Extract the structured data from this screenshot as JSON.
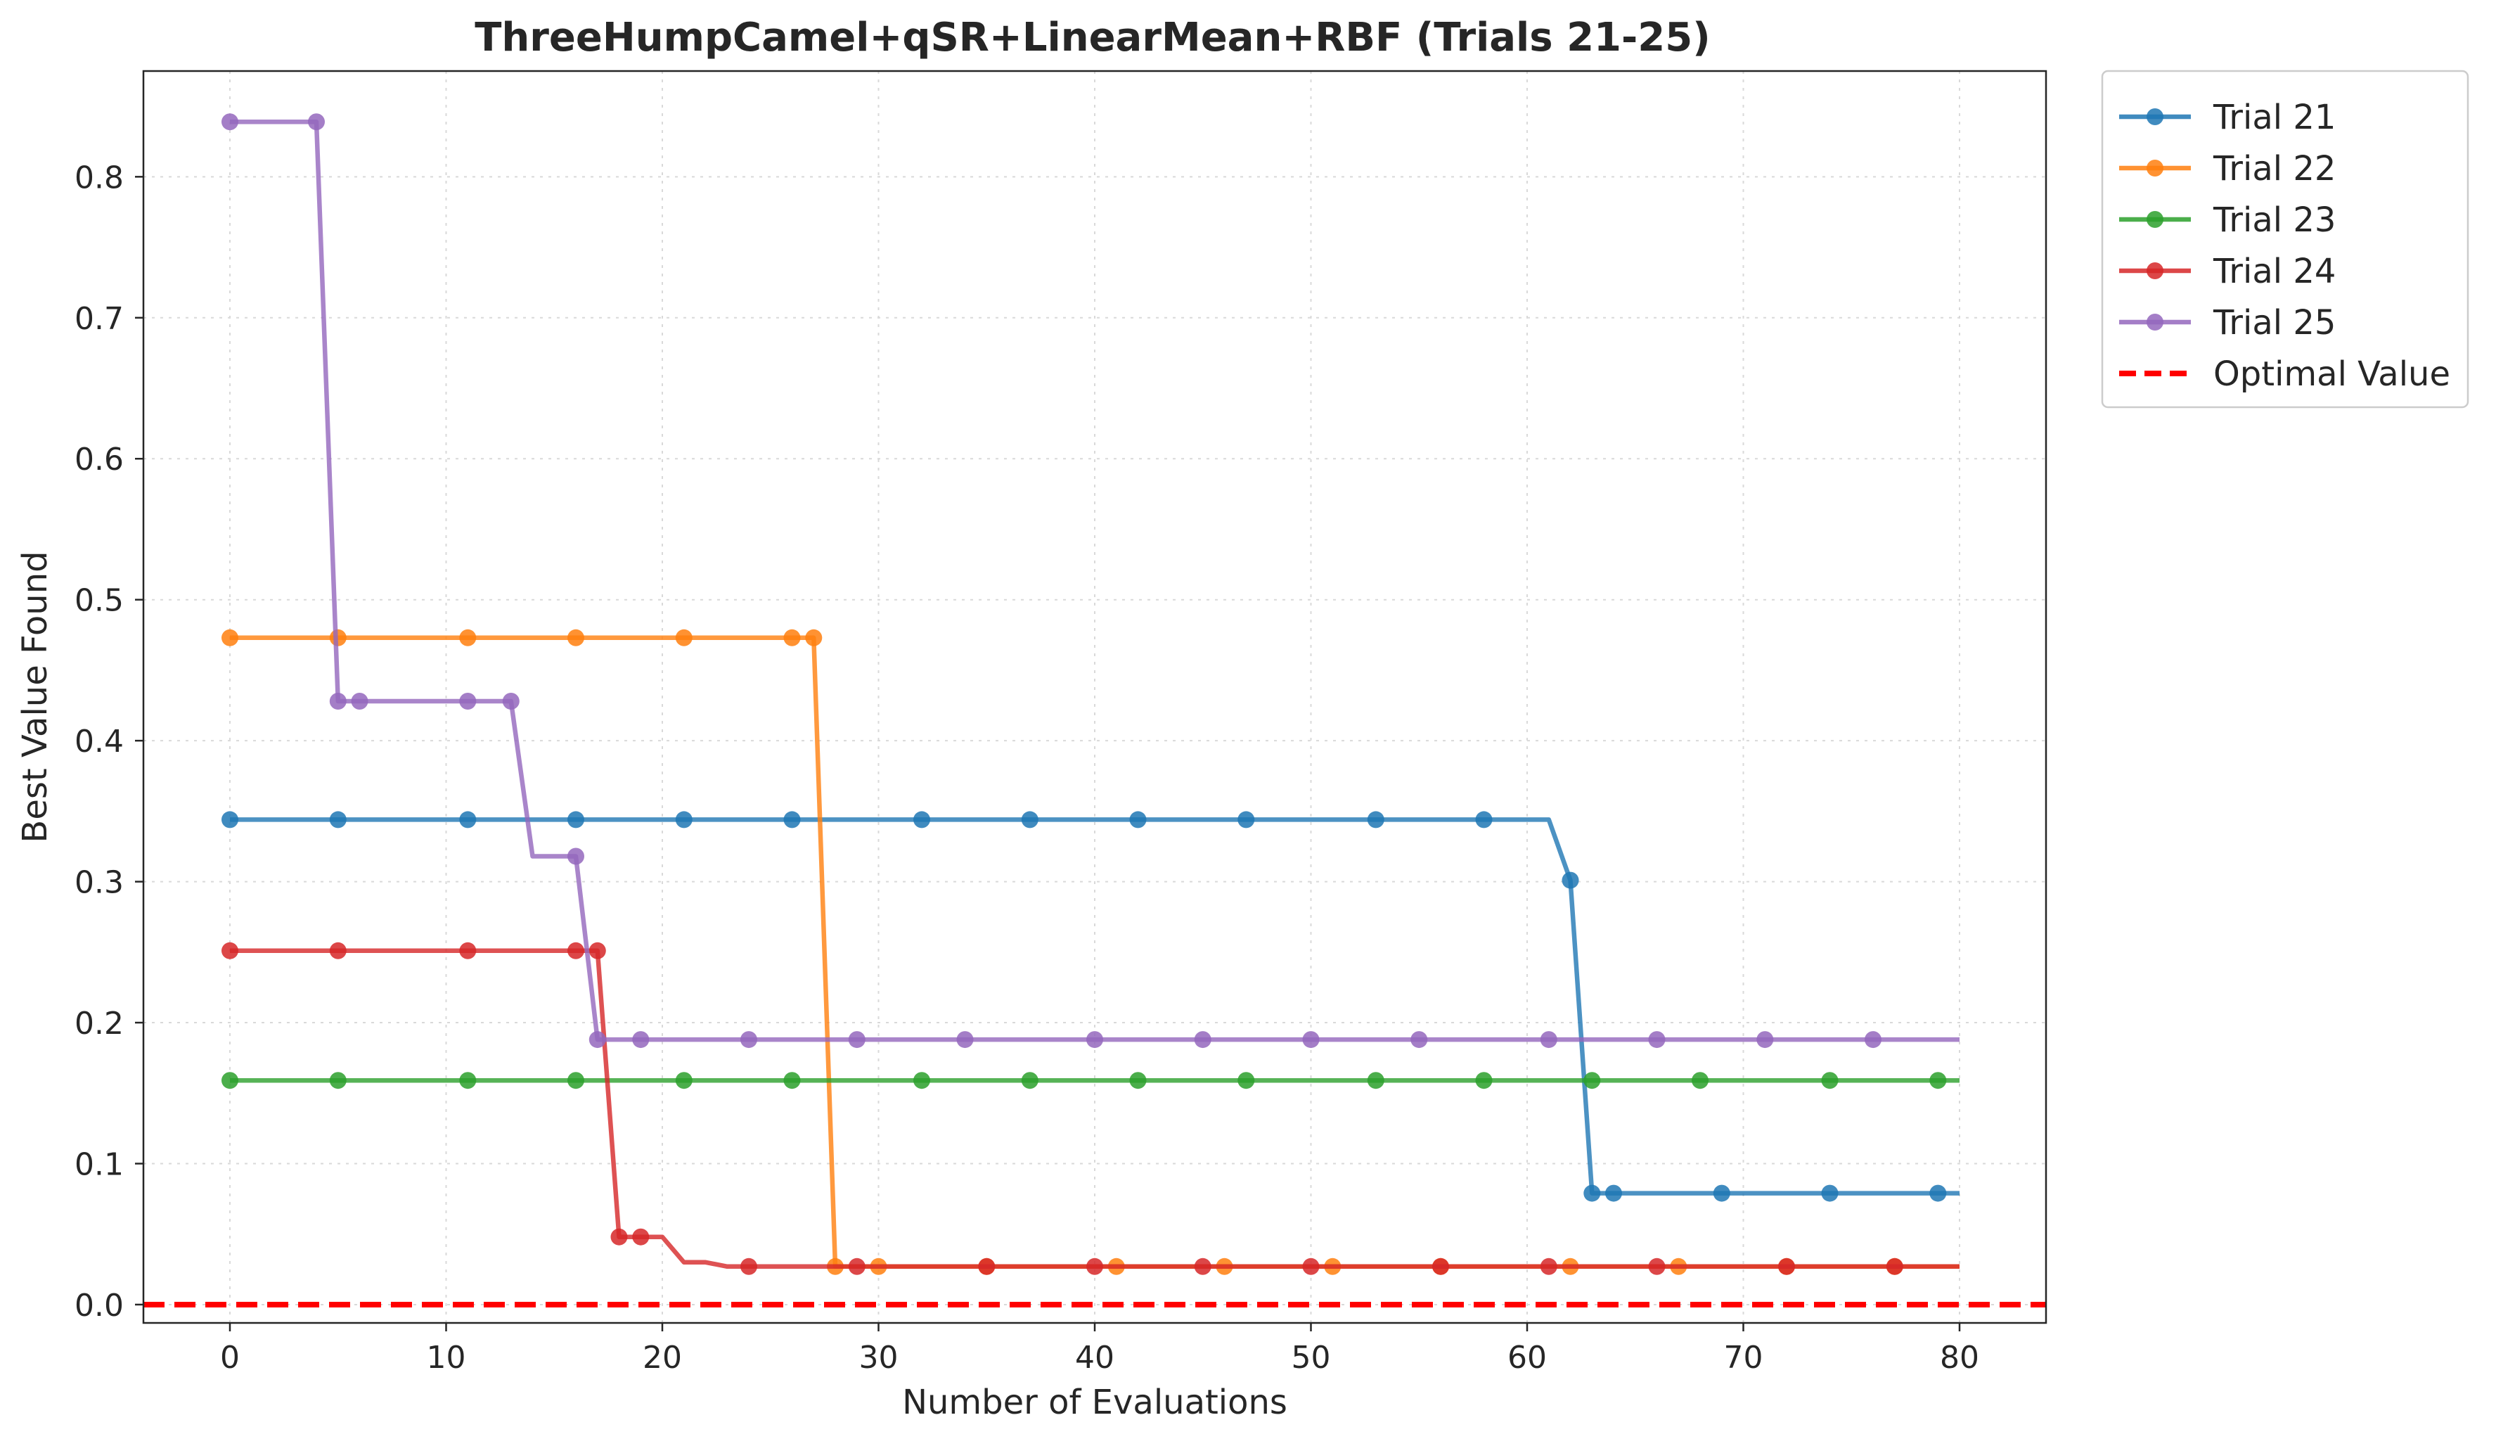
{
  "chart_data": {
    "type": "line",
    "title": "ThreeHumpCamel+qSR+LinearMean+RBF (Trials 21-25)",
    "xlabel": "Number of Evaluations",
    "ylabel": "Best Value Found",
    "xlim": [
      -4,
      84
    ],
    "ylim": [
      -0.013,
      0.875
    ],
    "xticks": [
      0,
      10,
      20,
      30,
      40,
      50,
      60,
      70,
      80
    ],
    "yticks": [
      0.0,
      0.1,
      0.2,
      0.3,
      0.4,
      0.5,
      0.6,
      0.7,
      0.8
    ],
    "xtick_labels": [
      "0",
      "10",
      "20",
      "30",
      "40",
      "50",
      "60",
      "70",
      "80"
    ],
    "ytick_labels": [
      "0.0",
      "0.1",
      "0.2",
      "0.3",
      "0.4",
      "0.5",
      "0.6",
      "0.7",
      "0.8"
    ],
    "grid": true,
    "legend_position": "outside-top-right",
    "series": [
      {
        "name": "Trial 21",
        "color": "#1f77b4",
        "line": [
          [
            0,
            0.344
          ],
          [
            61,
            0.344
          ],
          [
            62,
            0.301
          ],
          [
            63,
            0.079
          ],
          [
            80,
            0.079
          ]
        ],
        "markers": [
          [
            0,
            0.344
          ],
          [
            5,
            0.344
          ],
          [
            11,
            0.344
          ],
          [
            16,
            0.344
          ],
          [
            21,
            0.344
          ],
          [
            26,
            0.344
          ],
          [
            32,
            0.344
          ],
          [
            37,
            0.344
          ],
          [
            42,
            0.344
          ],
          [
            47,
            0.344
          ],
          [
            53,
            0.344
          ],
          [
            58,
            0.344
          ],
          [
            62,
            0.301
          ],
          [
            63,
            0.079
          ],
          [
            64,
            0.079
          ],
          [
            69,
            0.079
          ],
          [
            74,
            0.079
          ],
          [
            79,
            0.079
          ]
        ]
      },
      {
        "name": "Trial 22",
        "color": "#ff7f0e",
        "line": [
          [
            0,
            0.473
          ],
          [
            27,
            0.473
          ],
          [
            28,
            0.027
          ],
          [
            80,
            0.027
          ]
        ],
        "markers": [
          [
            0,
            0.473
          ],
          [
            5,
            0.473
          ],
          [
            11,
            0.473
          ],
          [
            16,
            0.473
          ],
          [
            21,
            0.473
          ],
          [
            26,
            0.473
          ],
          [
            27,
            0.473
          ],
          [
            28,
            0.027
          ],
          [
            30,
            0.027
          ],
          [
            35,
            0.027
          ],
          [
            41,
            0.027
          ],
          [
            46,
            0.027
          ],
          [
            51,
            0.027
          ],
          [
            56,
            0.027
          ],
          [
            62,
            0.027
          ],
          [
            67,
            0.027
          ],
          [
            72,
            0.027
          ],
          [
            77,
            0.027
          ]
        ]
      },
      {
        "name": "Trial 23",
        "color": "#2ca02c",
        "line": [
          [
            0,
            0.159
          ],
          [
            80,
            0.159
          ]
        ],
        "markers": [
          [
            0,
            0.159
          ],
          [
            5,
            0.159
          ],
          [
            11,
            0.159
          ],
          [
            16,
            0.159
          ],
          [
            21,
            0.159
          ],
          [
            26,
            0.159
          ],
          [
            32,
            0.159
          ],
          [
            37,
            0.159
          ],
          [
            42,
            0.159
          ],
          [
            47,
            0.159
          ],
          [
            53,
            0.159
          ],
          [
            58,
            0.159
          ],
          [
            63,
            0.159
          ],
          [
            68,
            0.159
          ],
          [
            74,
            0.159
          ],
          [
            79,
            0.159
          ]
        ]
      },
      {
        "name": "Trial 24",
        "color": "#d62728",
        "line": [
          [
            0,
            0.251
          ],
          [
            17,
            0.251
          ],
          [
            18,
            0.048
          ],
          [
            20,
            0.048
          ],
          [
            21,
            0.03
          ],
          [
            22,
            0.03
          ],
          [
            23,
            0.027
          ],
          [
            80,
            0.027
          ]
        ],
        "markers": [
          [
            0,
            0.251
          ],
          [
            5,
            0.251
          ],
          [
            11,
            0.251
          ],
          [
            16,
            0.251
          ],
          [
            17,
            0.251
          ],
          [
            18,
            0.048
          ],
          [
            19,
            0.048
          ],
          [
            24,
            0.027
          ],
          [
            29,
            0.027
          ],
          [
            35,
            0.027
          ],
          [
            40,
            0.027
          ],
          [
            45,
            0.027
          ],
          [
            50,
            0.027
          ],
          [
            56,
            0.027
          ],
          [
            61,
            0.027
          ],
          [
            66,
            0.027
          ],
          [
            72,
            0.027
          ],
          [
            77,
            0.027
          ]
        ]
      },
      {
        "name": "Trial 25",
        "color": "#9467bd",
        "line": [
          [
            0,
            0.839
          ],
          [
            4,
            0.839
          ],
          [
            5,
            0.428
          ],
          [
            13,
            0.428
          ],
          [
            14,
            0.318
          ],
          [
            16,
            0.318
          ],
          [
            17,
            0.188
          ],
          [
            80,
            0.188
          ]
        ],
        "markers": [
          [
            0,
            0.839
          ],
          [
            4,
            0.839
          ],
          [
            5,
            0.428
          ],
          [
            6,
            0.428
          ],
          [
            11,
            0.428
          ],
          [
            13,
            0.428
          ],
          [
            16,
            0.318
          ],
          [
            17,
            0.188
          ],
          [
            19,
            0.188
          ],
          [
            24,
            0.188
          ],
          [
            29,
            0.188
          ],
          [
            34,
            0.188
          ],
          [
            40,
            0.188
          ],
          [
            45,
            0.188
          ],
          [
            50,
            0.188
          ],
          [
            55,
            0.188
          ],
          [
            61,
            0.188
          ],
          [
            66,
            0.188
          ],
          [
            71,
            0.188
          ],
          [
            76,
            0.188
          ]
        ]
      }
    ],
    "reference_line": {
      "name": "Optimal Value",
      "y": 0.0,
      "color": "#ff0000",
      "style": "dashed"
    }
  }
}
